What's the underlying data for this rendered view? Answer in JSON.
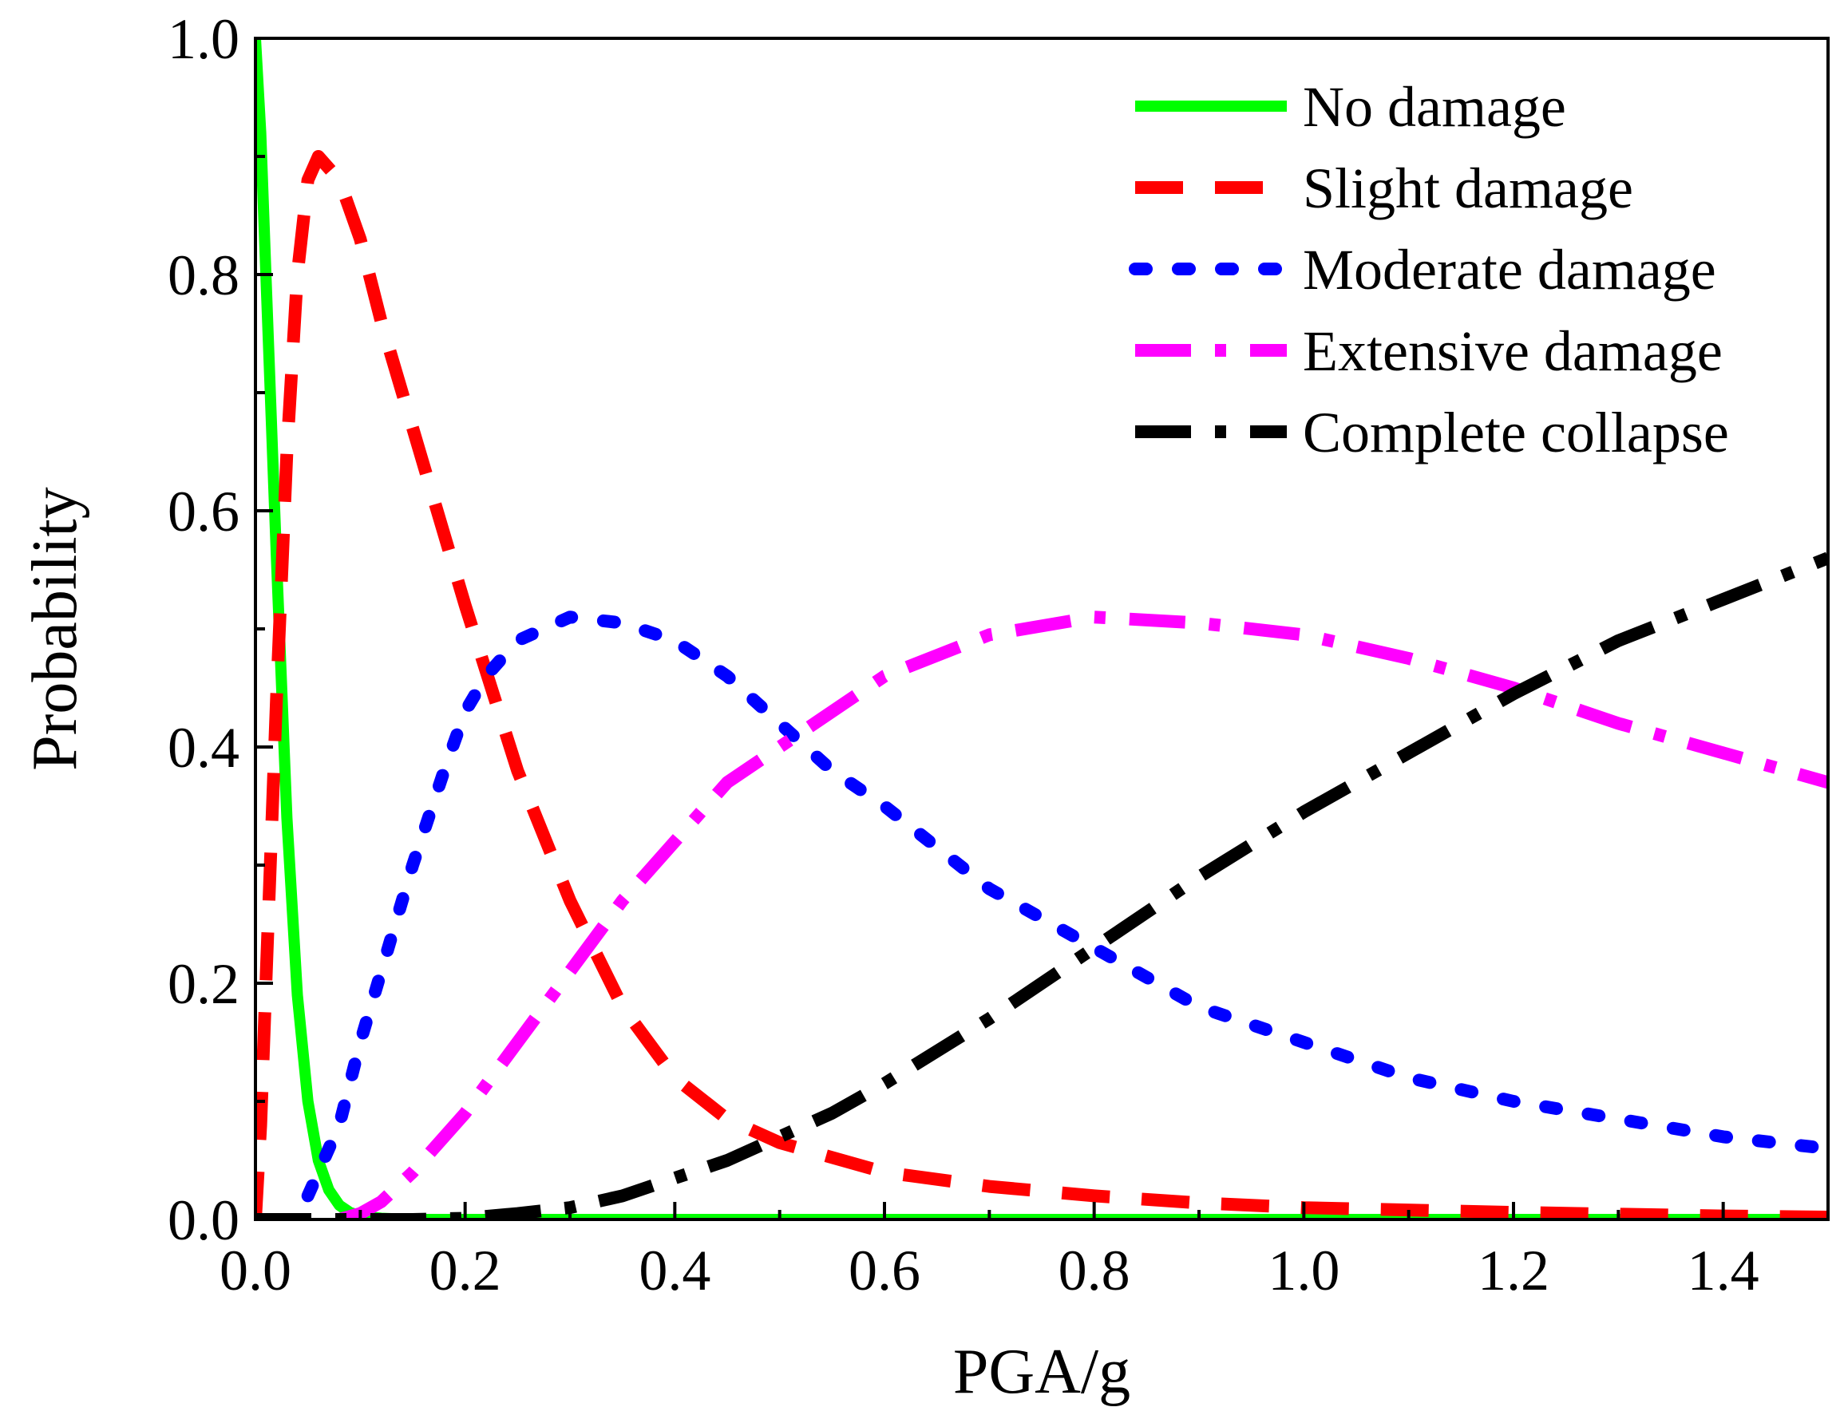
{
  "chart_data": {
    "type": "line",
    "title": "",
    "xlabel": "PGA/g",
    "ylabel": "Probability",
    "xlim": [
      0,
      1.5
    ],
    "ylim": [
      0,
      1.0
    ],
    "x_ticks": [
      0.0,
      0.2,
      0.4,
      0.6,
      0.8,
      1.0,
      1.2,
      1.4
    ],
    "x_tick_labels": [
      "0.0",
      "0.2",
      "0.4",
      "0.6",
      "0.8",
      "1.0",
      "1.2",
      "1.4"
    ],
    "y_ticks": [
      0.0,
      0.2,
      0.4,
      0.6,
      0.8,
      1.0
    ],
    "y_tick_labels": [
      "0.0",
      "0.2",
      "0.4",
      "0.6",
      "0.8",
      "1.0"
    ],
    "grid": false,
    "legend_position": "top-right",
    "series": [
      {
        "name": "No damage",
        "color": "#00ff00",
        "dash": "solid",
        "x": [
          0.0,
          0.005,
          0.01,
          0.02,
          0.03,
          0.04,
          0.05,
          0.06,
          0.07,
          0.08,
          0.09,
          0.1,
          0.12,
          0.15,
          0.2,
          0.3,
          0.5,
          0.8,
          1.0,
          1.2,
          1.5
        ],
        "y": [
          1.0,
          0.92,
          0.8,
          0.56,
          0.34,
          0.19,
          0.1,
          0.05,
          0.025,
          0.012,
          0.006,
          0.003,
          0.001,
          0.0,
          0.0,
          0.0,
          0.0,
          0.0,
          0.0,
          0.0,
          0.0
        ]
      },
      {
        "name": "Slight damage",
        "color": "#ff0000",
        "dash": "dash",
        "x": [
          0.0,
          0.005,
          0.01,
          0.02,
          0.03,
          0.04,
          0.05,
          0.06,
          0.08,
          0.1,
          0.12,
          0.15,
          0.18,
          0.2,
          0.25,
          0.3,
          0.35,
          0.4,
          0.45,
          0.5,
          0.6,
          0.7,
          0.8,
          0.9,
          1.0,
          1.2,
          1.4,
          1.5
        ],
        "y": [
          0.0,
          0.08,
          0.2,
          0.44,
          0.65,
          0.8,
          0.88,
          0.9,
          0.88,
          0.83,
          0.76,
          0.67,
          0.58,
          0.52,
          0.38,
          0.27,
          0.18,
          0.12,
          0.085,
          0.065,
          0.04,
          0.028,
          0.02,
          0.014,
          0.01,
          0.006,
          0.003,
          0.002
        ]
      },
      {
        "name": "Moderate damage",
        "color": "#0000ff",
        "dash": "dot",
        "x": [
          0.05,
          0.08,
          0.1,
          0.12,
          0.15,
          0.18,
          0.2,
          0.22,
          0.25,
          0.3,
          0.35,
          0.4,
          0.45,
          0.5,
          0.55,
          0.6,
          0.7,
          0.8,
          0.9,
          1.0,
          1.1,
          1.2,
          1.3,
          1.4,
          1.5
        ],
        "y": [
          0.02,
          0.08,
          0.15,
          0.21,
          0.3,
          0.38,
          0.43,
          0.46,
          0.49,
          0.51,
          0.505,
          0.49,
          0.46,
          0.42,
          0.38,
          0.35,
          0.28,
          0.23,
          0.18,
          0.15,
          0.12,
          0.1,
          0.085,
          0.07,
          0.06
        ]
      },
      {
        "name": "Extensive damage",
        "color": "#ff00ff",
        "dash": "dashdot",
        "x": [
          0.08,
          0.1,
          0.12,
          0.15,
          0.2,
          0.25,
          0.3,
          0.35,
          0.4,
          0.45,
          0.5,
          0.55,
          0.6,
          0.7,
          0.8,
          0.9,
          1.0,
          1.1,
          1.2,
          1.3,
          1.4,
          1.5
        ],
        "y": [
          0.0,
          0.005,
          0.015,
          0.04,
          0.09,
          0.15,
          0.21,
          0.27,
          0.32,
          0.37,
          0.4,
          0.43,
          0.46,
          0.495,
          0.51,
          0.505,
          0.495,
          0.475,
          0.45,
          0.42,
          0.395,
          0.37
        ]
      },
      {
        "name": "Complete collapse",
        "color": "#000000",
        "dash": "dashdot",
        "x": [
          0.0,
          0.15,
          0.2,
          0.25,
          0.3,
          0.35,
          0.4,
          0.45,
          0.5,
          0.55,
          0.6,
          0.7,
          0.8,
          0.9,
          1.0,
          1.1,
          1.2,
          1.3,
          1.4,
          1.5
        ],
        "y": [
          0.0,
          0.0,
          0.001,
          0.005,
          0.01,
          0.02,
          0.035,
          0.05,
          0.07,
          0.09,
          0.115,
          0.17,
          0.23,
          0.29,
          0.345,
          0.395,
          0.445,
          0.49,
          0.525,
          0.56
        ]
      }
    ]
  }
}
